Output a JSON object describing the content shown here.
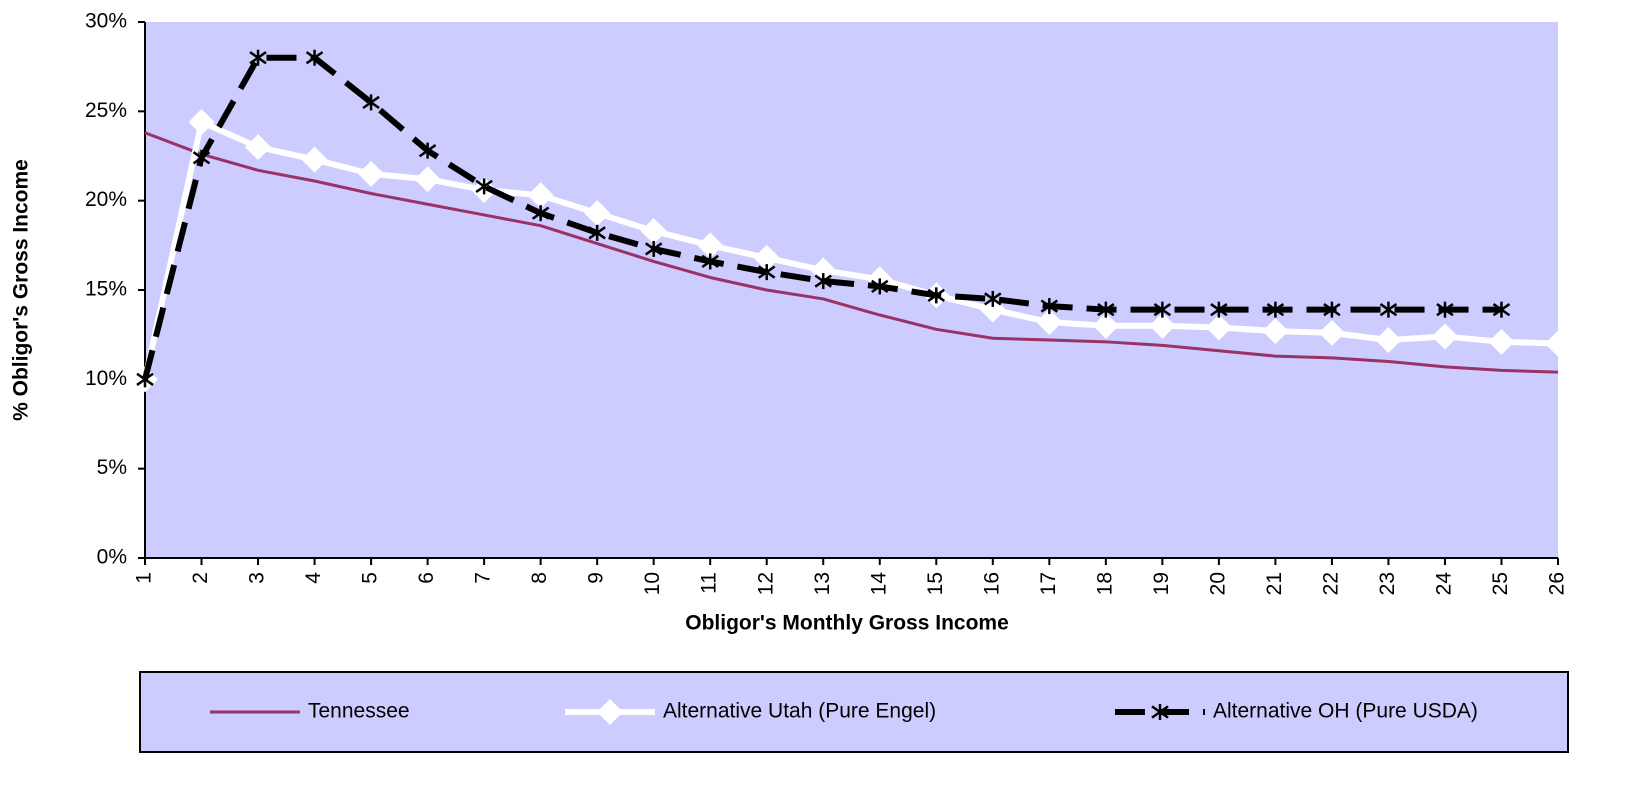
{
  "chart_data": {
    "type": "line",
    "x_label": "Obligor's Monthly Gross Income",
    "y_label": "% Obligor's Gross Income",
    "x": [
      1,
      2,
      3,
      4,
      5,
      6,
      7,
      8,
      9,
      10,
      11,
      12,
      13,
      14,
      15,
      16,
      17,
      18,
      19,
      20,
      21,
      22,
      23,
      24,
      25,
      26
    ],
    "xlim": [
      1,
      26
    ],
    "ylim": [
      0,
      30
    ],
    "yticks": [
      {
        "value": 0,
        "label": "0%"
      },
      {
        "value": 5,
        "label": "5%"
      },
      {
        "value": 10,
        "label": "10%"
      },
      {
        "value": 15,
        "label": "15%"
      },
      {
        "value": 20,
        "label": "20%"
      },
      {
        "value": 25,
        "label": "25%"
      },
      {
        "value": 30,
        "label": "30%"
      }
    ],
    "plot_background": "#ccccff",
    "legend_position": "bottom",
    "series": [
      {
        "name": "Tennessee",
        "color": "#993366",
        "width": 3,
        "dashed": false,
        "marker": "none",
        "values": [
          23.8,
          22.6,
          21.7,
          21.1,
          20.4,
          19.8,
          19.2,
          18.6,
          17.6,
          16.6,
          15.7,
          15.0,
          14.5,
          13.6,
          12.8,
          12.3,
          12.2,
          12.1,
          11.9,
          11.6,
          11.3,
          11.2,
          11.0,
          10.7,
          10.5,
          10.4
        ]
      },
      {
        "name": "Alternative Utah (Pure Engel)",
        "color": "#ffffff",
        "width": 6,
        "dashed": false,
        "marker": "diamond",
        "values": [
          10.0,
          24.4,
          23.0,
          22.3,
          21.5,
          21.2,
          20.6,
          20.3,
          19.3,
          18.3,
          17.5,
          16.8,
          16.1,
          15.6,
          14.7,
          13.9,
          13.2,
          13.0,
          13.0,
          12.9,
          12.7,
          12.6,
          12.2,
          12.4,
          12.1,
          12.0
        ]
      },
      {
        "name": "Alternative OH (Pure USDA)",
        "color": "#000000",
        "width": 6,
        "dashed": true,
        "marker": "asterisk",
        "values": [
          10.0,
          22.4,
          28.0,
          28.0,
          25.5,
          22.8,
          20.8,
          19.3,
          18.2,
          17.3,
          16.6,
          16.0,
          15.5,
          15.2,
          14.7,
          14.5,
          14.1,
          13.9,
          13.9,
          13.9,
          13.9,
          13.9,
          13.9,
          13.9,
          13.9,
          null
        ]
      }
    ]
  }
}
